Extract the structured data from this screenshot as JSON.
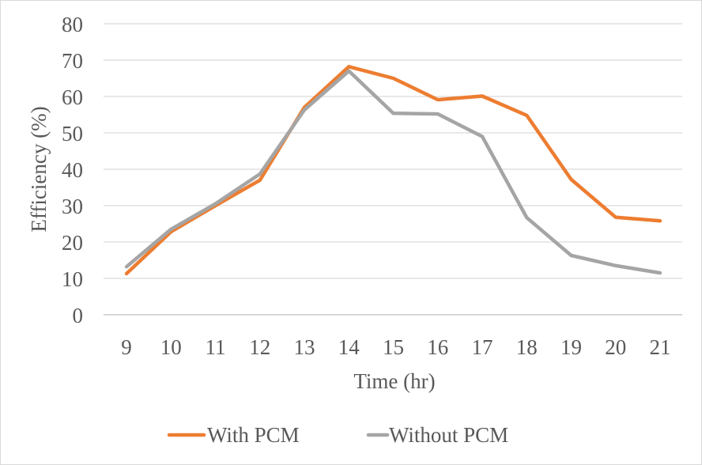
{
  "chart_data": {
    "type": "line",
    "xlabel": "Time (hr)",
    "ylabel": "Efficiency (%)",
    "ylim": [
      0,
      80
    ],
    "yticks": [
      0,
      10,
      20,
      30,
      40,
      50,
      60,
      70,
      80
    ],
    "categories": [
      "9",
      "10",
      "11",
      "12",
      "13",
      "14",
      "15",
      "16",
      "17",
      "18",
      "19",
      "20",
      "21"
    ],
    "grid": true,
    "legend_position": "bottom",
    "series": [
      {
        "name": "With PCM",
        "color": "#ED7D31",
        "values": [
          11.3,
          22.8,
          30.0,
          37.0,
          57.0,
          68.2,
          65.0,
          59.1,
          60.1,
          54.8,
          37.2,
          26.8,
          25.8
        ]
      },
      {
        "name": "Without PCM",
        "color": "#A5A5A5",
        "values": [
          13.2,
          23.5,
          30.5,
          38.7,
          56.3,
          67.0,
          55.4,
          55.2,
          49.0,
          26.7,
          16.3,
          13.5,
          11.5
        ]
      }
    ]
  }
}
